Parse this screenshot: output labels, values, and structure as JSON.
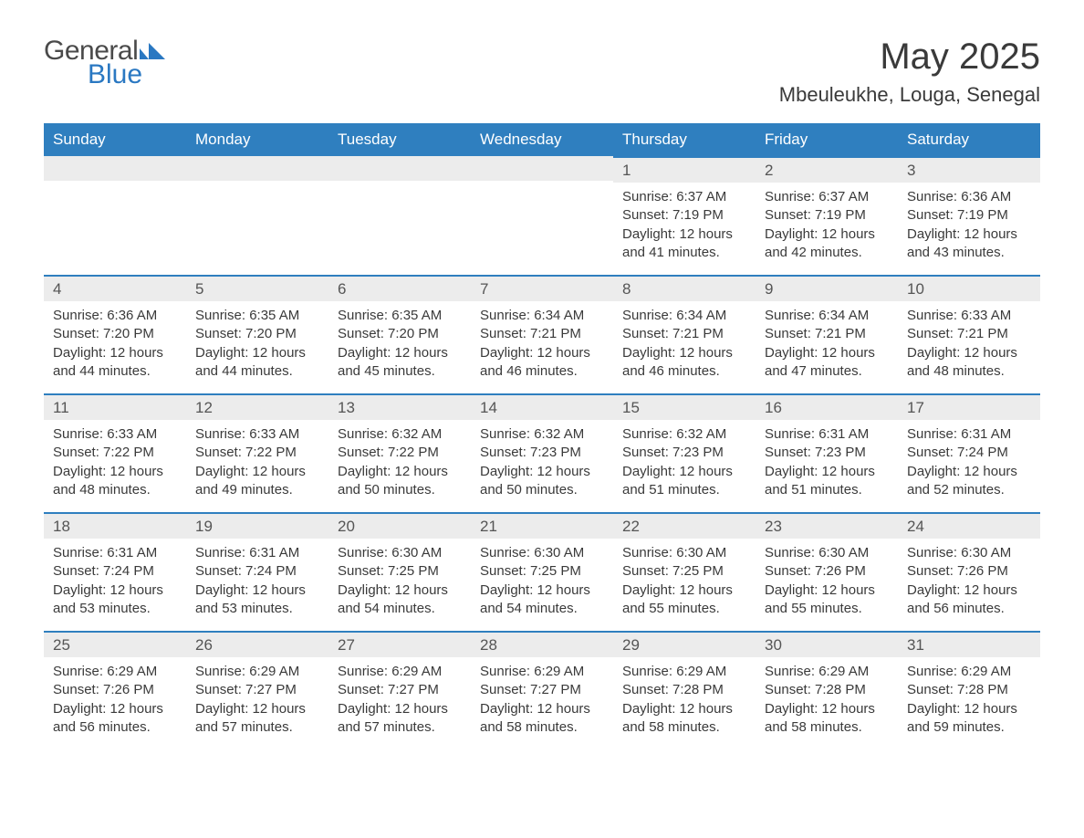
{
  "logo": {
    "text1": "General",
    "text2": "Blue"
  },
  "title": "May 2025",
  "location": "Mbeuleukhe, Louga, Senegal",
  "colors": {
    "header_bg": "#2f7fbf",
    "header_text": "#ffffff",
    "daynum_bg": "#ececec",
    "row_divider": "#2f7fbf",
    "body_text": "#3a3a3a",
    "logo_blue": "#2a78c2"
  },
  "typography": {
    "title_fontsize": 40,
    "location_fontsize": 22,
    "header_fontsize": 17,
    "daynum_fontsize": 17,
    "cell_fontsize": 15
  },
  "weekdays": [
    "Sunday",
    "Monday",
    "Tuesday",
    "Wednesday",
    "Thursday",
    "Friday",
    "Saturday"
  ],
  "weeks": [
    [
      null,
      null,
      null,
      null,
      {
        "d": "1",
        "sr": "Sunrise: 6:37 AM",
        "ss": "Sunset: 7:19 PM",
        "dl1": "Daylight: 12 hours",
        "dl2": "and 41 minutes."
      },
      {
        "d": "2",
        "sr": "Sunrise: 6:37 AM",
        "ss": "Sunset: 7:19 PM",
        "dl1": "Daylight: 12 hours",
        "dl2": "and 42 minutes."
      },
      {
        "d": "3",
        "sr": "Sunrise: 6:36 AM",
        "ss": "Sunset: 7:19 PM",
        "dl1": "Daylight: 12 hours",
        "dl2": "and 43 minutes."
      }
    ],
    [
      {
        "d": "4",
        "sr": "Sunrise: 6:36 AM",
        "ss": "Sunset: 7:20 PM",
        "dl1": "Daylight: 12 hours",
        "dl2": "and 44 minutes."
      },
      {
        "d": "5",
        "sr": "Sunrise: 6:35 AM",
        "ss": "Sunset: 7:20 PM",
        "dl1": "Daylight: 12 hours",
        "dl2": "and 44 minutes."
      },
      {
        "d": "6",
        "sr": "Sunrise: 6:35 AM",
        "ss": "Sunset: 7:20 PM",
        "dl1": "Daylight: 12 hours",
        "dl2": "and 45 minutes."
      },
      {
        "d": "7",
        "sr": "Sunrise: 6:34 AM",
        "ss": "Sunset: 7:21 PM",
        "dl1": "Daylight: 12 hours",
        "dl2": "and 46 minutes."
      },
      {
        "d": "8",
        "sr": "Sunrise: 6:34 AM",
        "ss": "Sunset: 7:21 PM",
        "dl1": "Daylight: 12 hours",
        "dl2": "and 46 minutes."
      },
      {
        "d": "9",
        "sr": "Sunrise: 6:34 AM",
        "ss": "Sunset: 7:21 PM",
        "dl1": "Daylight: 12 hours",
        "dl2": "and 47 minutes."
      },
      {
        "d": "10",
        "sr": "Sunrise: 6:33 AM",
        "ss": "Sunset: 7:21 PM",
        "dl1": "Daylight: 12 hours",
        "dl2": "and 48 minutes."
      }
    ],
    [
      {
        "d": "11",
        "sr": "Sunrise: 6:33 AM",
        "ss": "Sunset: 7:22 PM",
        "dl1": "Daylight: 12 hours",
        "dl2": "and 48 minutes."
      },
      {
        "d": "12",
        "sr": "Sunrise: 6:33 AM",
        "ss": "Sunset: 7:22 PM",
        "dl1": "Daylight: 12 hours",
        "dl2": "and 49 minutes."
      },
      {
        "d": "13",
        "sr": "Sunrise: 6:32 AM",
        "ss": "Sunset: 7:22 PM",
        "dl1": "Daylight: 12 hours",
        "dl2": "and 50 minutes."
      },
      {
        "d": "14",
        "sr": "Sunrise: 6:32 AM",
        "ss": "Sunset: 7:23 PM",
        "dl1": "Daylight: 12 hours",
        "dl2": "and 50 minutes."
      },
      {
        "d": "15",
        "sr": "Sunrise: 6:32 AM",
        "ss": "Sunset: 7:23 PM",
        "dl1": "Daylight: 12 hours",
        "dl2": "and 51 minutes."
      },
      {
        "d": "16",
        "sr": "Sunrise: 6:31 AM",
        "ss": "Sunset: 7:23 PM",
        "dl1": "Daylight: 12 hours",
        "dl2": "and 51 minutes."
      },
      {
        "d": "17",
        "sr": "Sunrise: 6:31 AM",
        "ss": "Sunset: 7:24 PM",
        "dl1": "Daylight: 12 hours",
        "dl2": "and 52 minutes."
      }
    ],
    [
      {
        "d": "18",
        "sr": "Sunrise: 6:31 AM",
        "ss": "Sunset: 7:24 PM",
        "dl1": "Daylight: 12 hours",
        "dl2": "and 53 minutes."
      },
      {
        "d": "19",
        "sr": "Sunrise: 6:31 AM",
        "ss": "Sunset: 7:24 PM",
        "dl1": "Daylight: 12 hours",
        "dl2": "and 53 minutes."
      },
      {
        "d": "20",
        "sr": "Sunrise: 6:30 AM",
        "ss": "Sunset: 7:25 PM",
        "dl1": "Daylight: 12 hours",
        "dl2": "and 54 minutes."
      },
      {
        "d": "21",
        "sr": "Sunrise: 6:30 AM",
        "ss": "Sunset: 7:25 PM",
        "dl1": "Daylight: 12 hours",
        "dl2": "and 54 minutes."
      },
      {
        "d": "22",
        "sr": "Sunrise: 6:30 AM",
        "ss": "Sunset: 7:25 PM",
        "dl1": "Daylight: 12 hours",
        "dl2": "and 55 minutes."
      },
      {
        "d": "23",
        "sr": "Sunrise: 6:30 AM",
        "ss": "Sunset: 7:26 PM",
        "dl1": "Daylight: 12 hours",
        "dl2": "and 55 minutes."
      },
      {
        "d": "24",
        "sr": "Sunrise: 6:30 AM",
        "ss": "Sunset: 7:26 PM",
        "dl1": "Daylight: 12 hours",
        "dl2": "and 56 minutes."
      }
    ],
    [
      {
        "d": "25",
        "sr": "Sunrise: 6:29 AM",
        "ss": "Sunset: 7:26 PM",
        "dl1": "Daylight: 12 hours",
        "dl2": "and 56 minutes."
      },
      {
        "d": "26",
        "sr": "Sunrise: 6:29 AM",
        "ss": "Sunset: 7:27 PM",
        "dl1": "Daylight: 12 hours",
        "dl2": "and 57 minutes."
      },
      {
        "d": "27",
        "sr": "Sunrise: 6:29 AM",
        "ss": "Sunset: 7:27 PM",
        "dl1": "Daylight: 12 hours",
        "dl2": "and 57 minutes."
      },
      {
        "d": "28",
        "sr": "Sunrise: 6:29 AM",
        "ss": "Sunset: 7:27 PM",
        "dl1": "Daylight: 12 hours",
        "dl2": "and 58 minutes."
      },
      {
        "d": "29",
        "sr": "Sunrise: 6:29 AM",
        "ss": "Sunset: 7:28 PM",
        "dl1": "Daylight: 12 hours",
        "dl2": "and 58 minutes."
      },
      {
        "d": "30",
        "sr": "Sunrise: 6:29 AM",
        "ss": "Sunset: 7:28 PM",
        "dl1": "Daylight: 12 hours",
        "dl2": "and 58 minutes."
      },
      {
        "d": "31",
        "sr": "Sunrise: 6:29 AM",
        "ss": "Sunset: 7:28 PM",
        "dl1": "Daylight: 12 hours",
        "dl2": "and 59 minutes."
      }
    ]
  ]
}
